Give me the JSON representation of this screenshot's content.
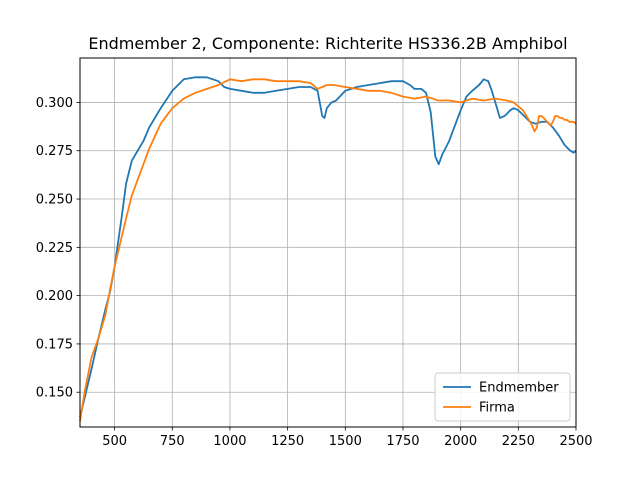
{
  "chart_data": {
    "type": "line",
    "title": "Endmember 2, Componente: Richterite HS336.2B Amphibol",
    "xlabel": "",
    "ylabel": "",
    "xlim": [
      350,
      2500
    ],
    "ylim": [
      0.132,
      0.323
    ],
    "xticks": [
      500,
      750,
      1000,
      1250,
      1500,
      1750,
      2000,
      2250,
      2500
    ],
    "yticks": [
      0.15,
      0.175,
      0.2,
      0.225,
      0.25,
      0.275,
      0.3
    ],
    "xtick_labels": [
      "500",
      "750",
      "1000",
      "1250",
      "1500",
      "1750",
      "2000",
      "2250",
      "2500"
    ],
    "ytick_labels": [
      "0.150",
      "0.175",
      "0.200",
      "0.225",
      "0.250",
      "0.275",
      "0.300"
    ],
    "grid": true,
    "legend_position": "lower-right",
    "series": [
      {
        "name": "Endmember",
        "color": "#1f77b4",
        "x": [
          350,
          370,
          400,
          430,
          460,
          480,
          500,
          530,
          550,
          575,
          600,
          625,
          650,
          700,
          750,
          800,
          850,
          900,
          950,
          975,
          1000,
          1050,
          1100,
          1150,
          1200,
          1250,
          1300,
          1350,
          1380,
          1400,
          1410,
          1420,
          1440,
          1460,
          1500,
          1550,
          1600,
          1650,
          1700,
          1750,
          1780,
          1800,
          1830,
          1850,
          1870,
          1890,
          1905,
          1920,
          1950,
          1975,
          2000,
          2025,
          2050,
          2080,
          2100,
          2120,
          2135,
          2150,
          2170,
          2190,
          2200,
          2215,
          2230,
          2250,
          2275,
          2300,
          2325,
          2350,
          2375,
          2400,
          2425,
          2450,
          2475,
          2490,
          2500
        ],
        "y": [
          0.137,
          0.147,
          0.162,
          0.178,
          0.193,
          0.202,
          0.215,
          0.24,
          0.258,
          0.27,
          0.275,
          0.28,
          0.287,
          0.297,
          0.306,
          0.312,
          0.313,
          0.313,
          0.311,
          0.308,
          0.307,
          0.306,
          0.305,
          0.305,
          0.306,
          0.307,
          0.308,
          0.308,
          0.306,
          0.293,
          0.292,
          0.297,
          0.3,
          0.301,
          0.306,
          0.308,
          0.309,
          0.31,
          0.311,
          0.311,
          0.309,
          0.307,
          0.307,
          0.305,
          0.295,
          0.272,
          0.268,
          0.273,
          0.28,
          0.288,
          0.296,
          0.303,
          0.306,
          0.309,
          0.312,
          0.311,
          0.306,
          0.3,
          0.292,
          0.293,
          0.294,
          0.296,
          0.297,
          0.296,
          0.293,
          0.29,
          0.289,
          0.29,
          0.29,
          0.287,
          0.283,
          0.278,
          0.275,
          0.274,
          0.275
        ]
      },
      {
        "name": "Firma",
        "color": "#ff7f0e",
        "x": [
          350,
          370,
          400,
          430,
          460,
          480,
          500,
          530,
          550,
          575,
          600,
          625,
          650,
          700,
          750,
          800,
          850,
          900,
          950,
          1000,
          1050,
          1100,
          1150,
          1200,
          1250,
          1300,
          1350,
          1380,
          1400,
          1420,
          1450,
          1500,
          1550,
          1600,
          1650,
          1700,
          1750,
          1800,
          1850,
          1880,
          1900,
          1950,
          2000,
          2050,
          2100,
          2150,
          2200,
          2230,
          2250,
          2270,
          2290,
          2310,
          2320,
          2330,
          2340,
          2350,
          2360,
          2375,
          2390,
          2400,
          2410,
          2420,
          2430,
          2440,
          2450,
          2460,
          2470,
          2480,
          2490,
          2500
        ],
        "y": [
          0.135,
          0.15,
          0.168,
          0.178,
          0.19,
          0.203,
          0.215,
          0.23,
          0.24,
          0.252,
          0.26,
          0.268,
          0.276,
          0.289,
          0.297,
          0.302,
          0.305,
          0.307,
          0.309,
          0.312,
          0.311,
          0.312,
          0.312,
          0.311,
          0.311,
          0.311,
          0.31,
          0.307,
          0.308,
          0.309,
          0.309,
          0.308,
          0.307,
          0.306,
          0.306,
          0.305,
          0.303,
          0.302,
          0.303,
          0.302,
          0.301,
          0.301,
          0.3,
          0.302,
          0.301,
          0.302,
          0.301,
          0.3,
          0.298,
          0.296,
          0.292,
          0.288,
          0.285,
          0.287,
          0.293,
          0.293,
          0.292,
          0.29,
          0.288,
          0.29,
          0.293,
          0.293,
          0.292,
          0.292,
          0.291,
          0.291,
          0.29,
          0.29,
          0.29,
          0.289
        ]
      }
    ]
  }
}
